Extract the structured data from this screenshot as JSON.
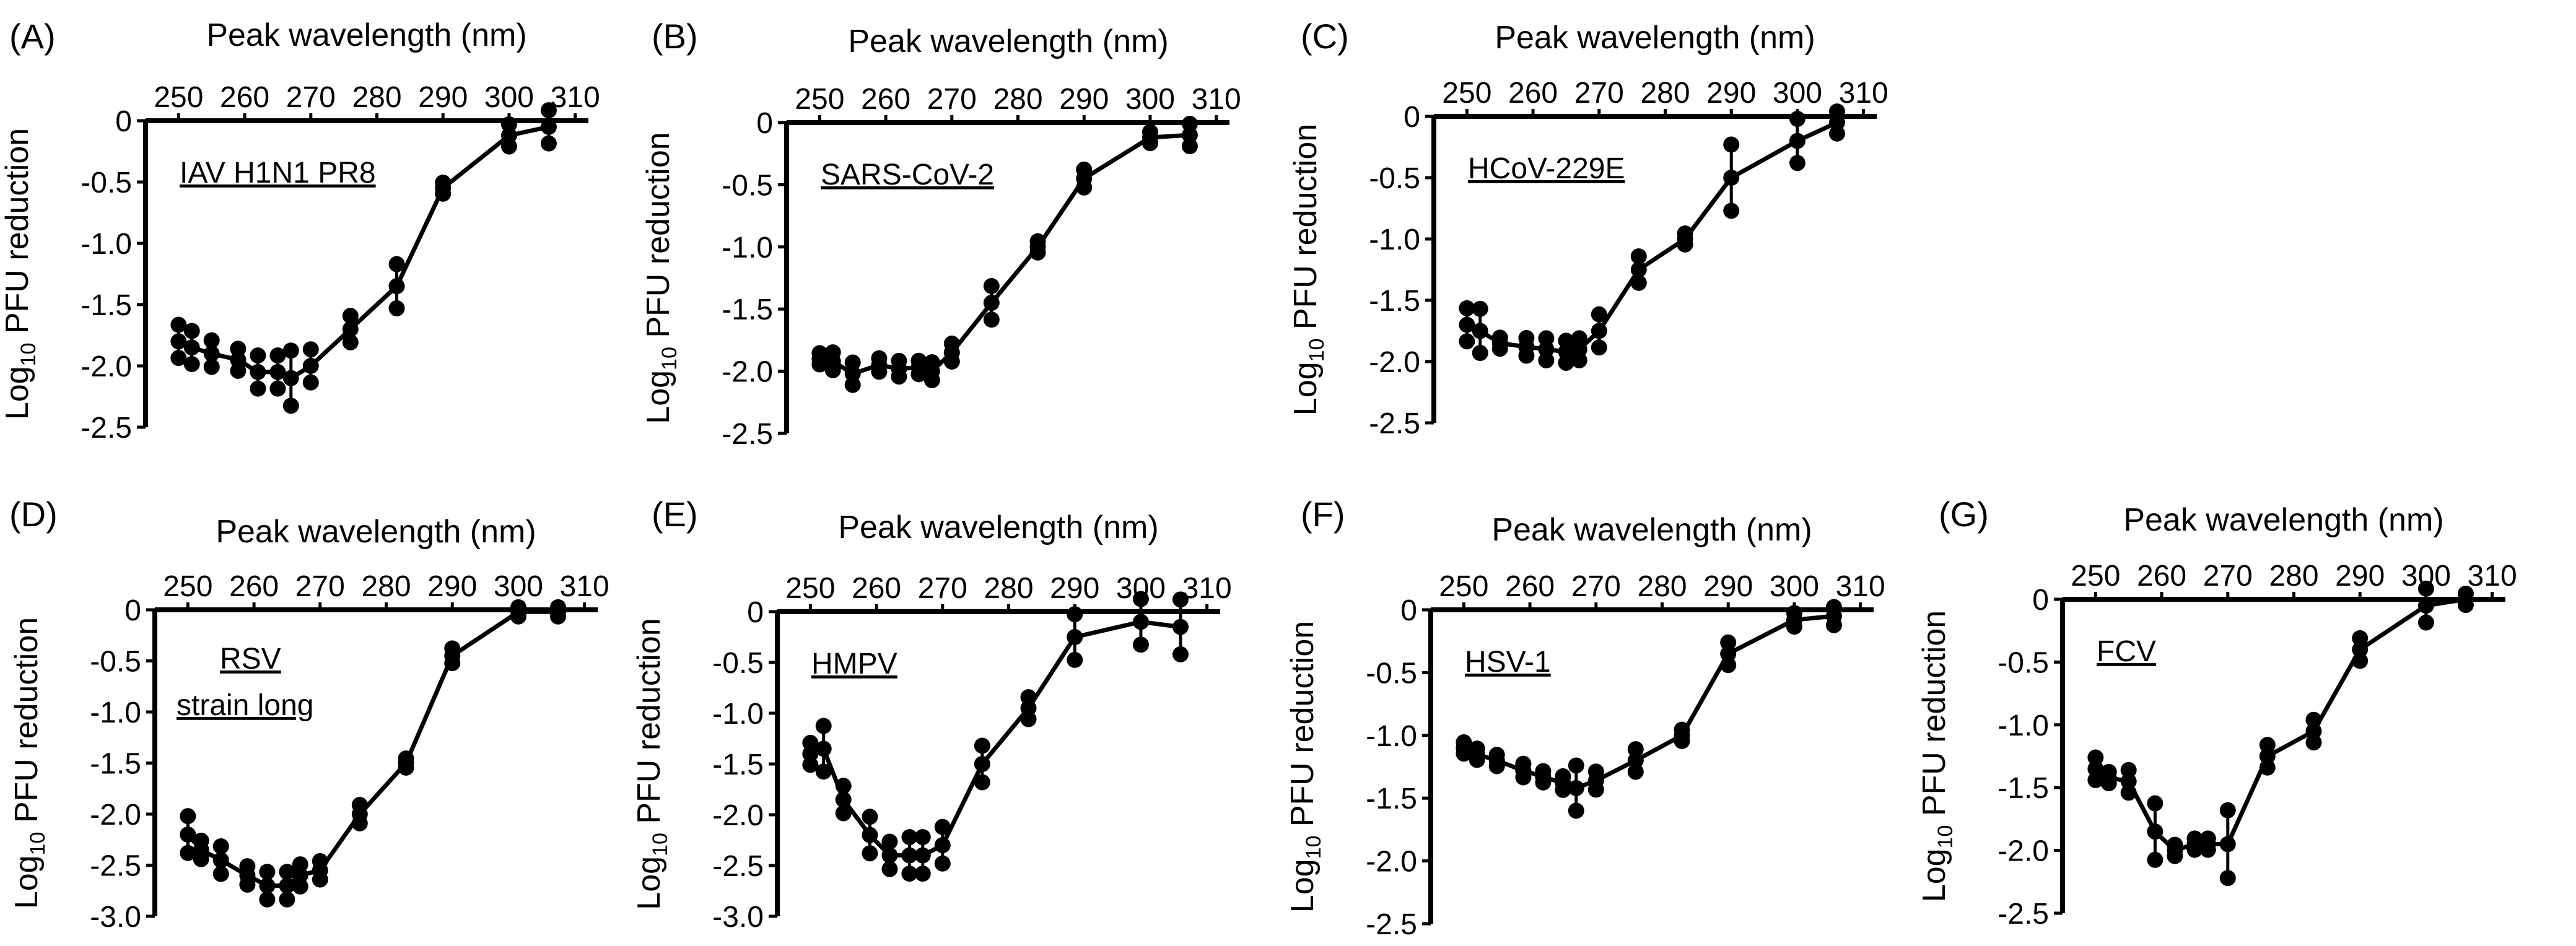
{
  "figure": {
    "x_axis_title": "Peak wavelength (nm)",
    "y_axis_title": "Log",
    "y_axis_title_subscript": "10",
    "y_axis_title_suffix": " PFU reduction",
    "colors": {
      "line": "#000000",
      "background": "#ffffff"
    }
  },
  "chart_data": [
    {
      "type": "line",
      "panel": "(A)",
      "virus_label": [
        "IAV H1N1 PR8"
      ],
      "xlabel": "Peak wavelength (nm)",
      "ylabel": "Log10 PFU reduction",
      "xlim": [
        245,
        312
      ],
      "ylim": [
        -2.5,
        0
      ],
      "x_ticks": [
        250,
        260,
        270,
        280,
        290,
        300,
        310
      ],
      "y_ticks": [
        0,
        -0.5,
        -1.0,
        -1.5,
        -2.0,
        -2.5
      ],
      "y_tick_labels": [
        "0",
        "-0.5",
        "-1.0",
        "-1.5",
        "-2.0",
        "-2.5"
      ],
      "x": [
        250,
        252,
        255,
        259,
        262,
        265,
        267,
        270,
        276,
        283,
        290,
        300,
        306
      ],
      "y": [
        -1.8,
        -1.85,
        -1.9,
        -1.95,
        -2.05,
        -2.05,
        -2.1,
        -2.0,
        -1.7,
        -1.35,
        -0.55,
        -0.12,
        -0.05
      ],
      "spread": [
        0.15,
        0.15,
        0.12,
        0.1,
        0.15,
        0.15,
        0.25,
        0.15,
        0.12,
        0.2,
        0.05,
        0.1,
        0.15
      ]
    },
    {
      "type": "line",
      "panel": "(B)",
      "virus_label": [
        "SARS-CoV-2"
      ],
      "xlabel": "Peak wavelength (nm)",
      "ylabel": "Log10 PFU reduction",
      "xlim": [
        245,
        312
      ],
      "ylim": [
        -2.5,
        0
      ],
      "x_ticks": [
        250,
        260,
        270,
        280,
        290,
        300,
        310
      ],
      "y_ticks": [
        0,
        -0.5,
        -1.0,
        -1.5,
        -2.0,
        -2.5
      ],
      "y_tick_labels": [
        "0",
        "-0.5",
        "-1.0",
        "-1.5",
        "-2.0",
        "-2.5"
      ],
      "x": [
        250,
        252,
        255,
        259,
        262,
        265,
        267,
        270,
        276,
        283,
        290,
        300,
        306
      ],
      "y": [
        -1.9,
        -1.92,
        -2.02,
        -1.95,
        -1.98,
        -1.97,
        -2.0,
        -1.85,
        -1.45,
        -1.0,
        -0.45,
        -0.12,
        -0.1
      ],
      "spread": [
        0.05,
        0.08,
        0.1,
        0.06,
        0.07,
        0.06,
        0.08,
        0.08,
        0.15,
        0.05,
        0.08,
        0.05,
        0.1
      ]
    },
    {
      "type": "line",
      "panel": "(C)",
      "virus_label": [
        "HCoV-229E"
      ],
      "xlabel": "Peak wavelength (nm)",
      "ylabel": "Log10 PFU reduction",
      "xlim": [
        245,
        312
      ],
      "ylim": [
        -2.5,
        0
      ],
      "x_ticks": [
        250,
        260,
        270,
        280,
        290,
        300,
        310
      ],
      "y_ticks": [
        0,
        -0.5,
        -1.0,
        -1.5,
        -2.0,
        -2.5
      ],
      "y_tick_labels": [
        "0",
        "-0.5",
        "-1.0",
        "-1.5",
        "-2.0",
        "-2.5"
      ],
      "x": [
        250,
        252,
        255,
        259,
        262,
        265,
        267,
        270,
        276,
        283,
        290,
        300,
        306
      ],
      "y": [
        -1.7,
        -1.75,
        -1.85,
        -1.88,
        -1.9,
        -1.92,
        -1.9,
        -1.75,
        -1.25,
        -1.0,
        -0.5,
        -0.2,
        -0.05
      ],
      "spread": [
        0.15,
        0.2,
        0.05,
        0.08,
        0.1,
        0.1,
        0.1,
        0.15,
        0.12,
        0.05,
        0.3,
        0.2,
        0.1
      ]
    },
    {
      "type": "line",
      "panel": "(D)",
      "virus_label": [
        "RSV",
        "strain long"
      ],
      "xlabel": "Peak wavelength (nm)",
      "ylabel": "Log10 PFU reduction",
      "xlim": [
        245,
        312
      ],
      "ylim": [
        -3.0,
        0
      ],
      "x_ticks": [
        250,
        260,
        270,
        280,
        290,
        300,
        310
      ],
      "y_ticks": [
        0,
        -0.5,
        -1.0,
        -1.5,
        -2.0,
        -2.5,
        -3.0
      ],
      "y_tick_labels": [
        "0",
        "-0.5",
        "-1.0",
        "-1.5",
        "-2.0",
        "-2.5",
        "-3.0"
      ],
      "x": [
        250,
        252,
        255,
        259,
        262,
        265,
        267,
        270,
        276,
        283,
        290,
        300,
        306
      ],
      "y": [
        -2.2,
        -2.35,
        -2.45,
        -2.6,
        -2.7,
        -2.7,
        -2.6,
        -2.55,
        -2.0,
        -1.5,
        -0.45,
        -0.02,
        -0.02
      ],
      "spread": [
        0.2,
        0.1,
        0.15,
        0.1,
        0.15,
        0.15,
        0.12,
        0.1,
        0.1,
        0.05,
        0.08,
        0.05,
        0.05
      ]
    },
    {
      "type": "line",
      "panel": "(E)",
      "virus_label": [
        "HMPV"
      ],
      "xlabel": "Peak wavelength (nm)",
      "ylabel": "Log10 PFU reduction",
      "xlim": [
        245,
        312
      ],
      "ylim": [
        -3.0,
        0
      ],
      "x_ticks": [
        250,
        260,
        270,
        280,
        290,
        300,
        310
      ],
      "y_ticks": [
        0,
        -0.5,
        -1.0,
        -1.5,
        -2.0,
        -2.5,
        -3.0
      ],
      "y_tick_labels": [
        "0",
        "-0.5",
        "-1.0",
        "-1.5",
        "-2.0",
        "-2.5",
        "-3.0"
      ],
      "x": [
        250,
        252,
        255,
        259,
        262,
        265,
        267,
        270,
        276,
        283,
        290,
        300,
        306
      ],
      "y": [
        -1.4,
        -1.35,
        -1.85,
        -2.2,
        -2.4,
        -2.4,
        -2.4,
        -2.3,
        -1.5,
        -0.95,
        -0.25,
        -0.1,
        -0.15
      ],
      "spread": [
        0.12,
        0.25,
        0.15,
        0.2,
        0.15,
        0.2,
        0.2,
        0.2,
        0.2,
        0.12,
        0.25,
        0.25,
        0.3
      ]
    },
    {
      "type": "line",
      "panel": "(F)",
      "virus_label": [
        "HSV-1"
      ],
      "xlabel": "Peak wavelength (nm)",
      "ylabel": "Log10 PFU reduction",
      "xlim": [
        245,
        312
      ],
      "ylim": [
        -2.5,
        0
      ],
      "x_ticks": [
        250,
        260,
        270,
        280,
        290,
        300,
        310
      ],
      "y_ticks": [
        0,
        -0.5,
        -1.0,
        -1.5,
        -2.0,
        -2.5
      ],
      "y_tick_labels": [
        "0",
        "-0.5",
        "-1.0",
        "-1.5",
        "-2.0",
        "-2.5"
      ],
      "x": [
        250,
        252,
        255,
        259,
        262,
        265,
        267,
        270,
        276,
        283,
        290,
        300,
        306
      ],
      "y": [
        -1.1,
        -1.15,
        -1.2,
        -1.28,
        -1.33,
        -1.38,
        -1.42,
        -1.36,
        -1.2,
        -1.0,
        -0.35,
        -0.08,
        -0.05
      ],
      "spread": [
        0.05,
        0.05,
        0.05,
        0.06,
        0.05,
        0.06,
        0.2,
        0.08,
        0.1,
        0.05,
        0.1,
        0.06,
        0.08
      ]
    },
    {
      "type": "line",
      "panel": "(G)",
      "virus_label": [
        "FCV"
      ],
      "xlabel": "Peak wavelength (nm)",
      "ylabel": "Log10 PFU reduction",
      "xlim": [
        245,
        312
      ],
      "ylim": [
        -2.5,
        0
      ],
      "x_ticks": [
        250,
        260,
        270,
        280,
        290,
        300,
        310
      ],
      "y_ticks": [
        0,
        -0.5,
        -1.0,
        -1.5,
        -2.0,
        -2.5
      ],
      "y_tick_labels": [
        "0",
        "-0.5",
        "-1.0",
        "-1.5",
        "-2.0",
        "-2.5"
      ],
      "x": [
        250,
        252,
        255,
        259,
        262,
        265,
        267,
        270,
        276,
        283,
        290,
        300,
        306
      ],
      "y": [
        -1.35,
        -1.42,
        -1.45,
        -1.85,
        -2.0,
        -1.95,
        -1.95,
        -1.95,
        -1.25,
        -1.05,
        -0.4,
        -0.05,
        0.0
      ],
      "spread": [
        0.1,
        0.05,
        0.1,
        0.25,
        0.05,
        0.05,
        0.05,
        0.3,
        0.1,
        0.1,
        0.1,
        0.15,
        0.05
      ]
    }
  ]
}
